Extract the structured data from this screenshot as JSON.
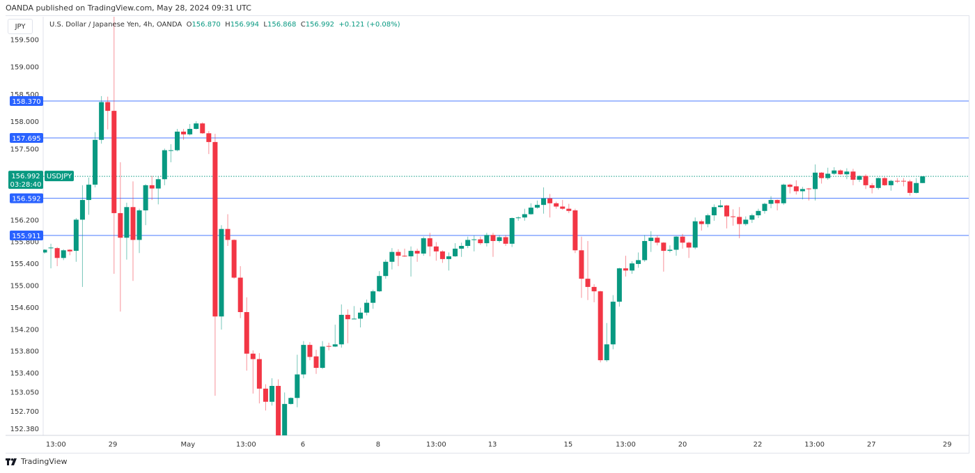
{
  "header": {
    "published": "OANDA published on TradingView.com, May 28, 2024 09:31 UTC",
    "currency_badge": "JPY",
    "symbol_desc": "U.S. Dollar / Japanese Yen, 4h, OANDA",
    "o_label": "O",
    "o": "156.870",
    "h_label": "H",
    "h": "156.994",
    "l_label": "L",
    "l": "156.868",
    "c_label": "C",
    "c": "156.992",
    "change": "+0.121 (+0.08%)"
  },
  "footer": {
    "brand": "TradingView"
  },
  "colors": {
    "up": "#089981",
    "down": "#F23645",
    "level": "#2962FF",
    "axis": "#e0e3eb"
  },
  "chart_data": {
    "type": "candlestick",
    "symbol": "USDJPY",
    "interval": "4h",
    "ylim": [
      152.3,
      160.0
    ],
    "price_ticks": [
      "159.500",
      "159.000",
      "158.500",
      "158.000",
      "157.500",
      "156.200",
      "155.800",
      "155.400",
      "155.000",
      "154.600",
      "154.200",
      "153.800",
      "153.400",
      "153.050",
      "152.700",
      "152.380"
    ],
    "time_ticks": [
      {
        "label": "13:00",
        "index": 1.8
      },
      {
        "label": "29",
        "index": 10.8
      },
      {
        "label": "May",
        "index": 22.7
      },
      {
        "label": "13:00",
        "index": 31.9
      },
      {
        "label": "6",
        "index": 40.9
      },
      {
        "label": "8",
        "index": 52.8
      },
      {
        "label": "13:00",
        "index": 62
      },
      {
        "label": "13",
        "index": 70.9
      },
      {
        "label": "15",
        "index": 82.9
      },
      {
        "label": "13:00",
        "index": 92
      },
      {
        "label": "20",
        "index": 101
      },
      {
        "label": "22",
        "index": 112.9
      },
      {
        "label": "13:00",
        "index": 121.9
      },
      {
        "label": "27",
        "index": 130.9
      },
      {
        "label": "29",
        "index": 142.9
      }
    ],
    "levels": [
      "158.370",
      "157.695",
      "156.592",
      "155.911"
    ],
    "last_price": {
      "value": "156.992",
      "countdown": "03:28:40",
      "tag": "USDJPY"
    },
    "candles_ohlc": [
      [
        155.6,
        155.66,
        155.58,
        155.65
      ],
      [
        155.68,
        155.76,
        155.31,
        155.69
      ],
      [
        155.68,
        155.7,
        155.35,
        155.5
      ],
      [
        155.5,
        155.66,
        155.46,
        155.64
      ],
      [
        155.65,
        155.66,
        155.55,
        155.62
      ],
      [
        155.63,
        156.23,
        155.43,
        156.2
      ],
      [
        156.2,
        156.83,
        154.97,
        156.56
      ],
      [
        156.56,
        156.97,
        156.29,
        156.84
      ],
      [
        156.84,
        157.8,
        156.79,
        157.66
      ],
      [
        157.66,
        158.46,
        157.59,
        158.35
      ],
      [
        158.35,
        158.45,
        157.85,
        158.19
      ],
      [
        158.19,
        160.2,
        155.21,
        156.32
      ],
      [
        156.32,
        157.25,
        154.52,
        155.87
      ],
      [
        155.87,
        156.51,
        155.47,
        156.43
      ],
      [
        156.43,
        156.9,
        155.08,
        155.83
      ],
      [
        155.83,
        156.4,
        155.59,
        156.37
      ],
      [
        156.37,
        156.85,
        156.1,
        156.83
      ],
      [
        156.83,
        157.0,
        156.56,
        156.77
      ],
      [
        156.77,
        156.99,
        156.48,
        156.94
      ],
      [
        156.94,
        157.5,
        156.83,
        157.47
      ],
      [
        157.46,
        157.58,
        157.25,
        157.47
      ],
      [
        157.47,
        157.86,
        157.45,
        157.81
      ],
      [
        157.81,
        157.86,
        157.66,
        157.76
      ],
      [
        157.76,
        157.95,
        157.74,
        157.86
      ],
      [
        157.86,
        158.0,
        157.85,
        157.96
      ],
      [
        157.96,
        157.98,
        157.77,
        157.78
      ],
      [
        157.78,
        157.82,
        157.4,
        157.62
      ],
      [
        157.62,
        157.77,
        152.98,
        154.43
      ],
      [
        154.43,
        156.1,
        154.19,
        156.03
      ],
      [
        156.03,
        156.3,
        155.72,
        155.83
      ],
      [
        155.83,
        155.84,
        155.12,
        155.14
      ],
      [
        155.14,
        155.35,
        154.4,
        154.51
      ],
      [
        154.51,
        154.78,
        153.44,
        153.75
      ],
      [
        153.75,
        153.81,
        153.02,
        153.65
      ],
      [
        153.65,
        153.76,
        152.84,
        153.11
      ],
      [
        153.11,
        153.19,
        152.71,
        152.87
      ],
      [
        152.87,
        153.3,
        152.8,
        153.16
      ],
      [
        153.16,
        153.28,
        151.9,
        152.2
      ],
      [
        152.2,
        153.04,
        151.95,
        152.83
      ],
      [
        152.83,
        152.95,
        152.82,
        152.94
      ],
      [
        152.94,
        153.73,
        152.77,
        153.37
      ],
      [
        153.37,
        153.98,
        153.3,
        153.91
      ],
      [
        153.91,
        153.96,
        153.63,
        153.69
      ],
      [
        153.7,
        153.82,
        153.38,
        153.49
      ],
      [
        153.49,
        153.98,
        153.47,
        153.88
      ],
      [
        153.89,
        153.95,
        153.81,
        153.88
      ],
      [
        153.88,
        154.28,
        153.87,
        153.92
      ],
      [
        153.92,
        154.65,
        153.86,
        154.46
      ],
      [
        154.46,
        154.56,
        153.94,
        154.38
      ],
      [
        154.38,
        154.62,
        154.38,
        154.39
      ],
      [
        154.39,
        154.59,
        154.23,
        154.5
      ],
      [
        154.5,
        154.74,
        154.45,
        154.68
      ],
      [
        154.68,
        154.92,
        154.57,
        154.89
      ],
      [
        154.89,
        155.26,
        154.88,
        155.17
      ],
      [
        155.17,
        155.47,
        155.12,
        155.43
      ],
      [
        155.43,
        155.68,
        155.29,
        155.61
      ],
      [
        155.61,
        155.66,
        155.35,
        155.54
      ],
      [
        155.54,
        155.67,
        155.52,
        155.53
      ],
      [
        155.53,
        155.71,
        155.16,
        155.63
      ],
      [
        155.63,
        155.67,
        155.43,
        155.58
      ],
      [
        155.58,
        155.89,
        155.54,
        155.86
      ],
      [
        155.86,
        155.96,
        155.53,
        155.71
      ],
      [
        155.71,
        155.79,
        155.45,
        155.62
      ],
      [
        155.62,
        155.64,
        155.41,
        155.48
      ],
      [
        155.48,
        155.6,
        155.27,
        155.53
      ],
      [
        155.53,
        155.77,
        155.52,
        155.67
      ],
      [
        155.67,
        155.78,
        155.52,
        155.72
      ],
      [
        155.72,
        155.89,
        155.68,
        155.83
      ],
      [
        155.83,
        155.91,
        155.62,
        155.84
      ],
      [
        155.84,
        155.89,
        155.74,
        155.77
      ],
      [
        155.77,
        155.96,
        155.71,
        155.92
      ],
      [
        155.92,
        155.96,
        155.52,
        155.81
      ],
      [
        155.81,
        155.92,
        155.78,
        155.88
      ],
      [
        155.88,
        155.92,
        155.72,
        155.76
      ],
      [
        155.76,
        156.24,
        155.7,
        156.23
      ],
      [
        156.23,
        156.26,
        156.18,
        156.24
      ],
      [
        156.24,
        156.4,
        156.18,
        156.3
      ],
      [
        156.3,
        156.5,
        156.29,
        156.42
      ],
      [
        156.42,
        156.55,
        156.4,
        156.47
      ],
      [
        156.47,
        156.79,
        156.31,
        156.59
      ],
      [
        156.59,
        156.67,
        156.24,
        156.5
      ],
      [
        156.5,
        156.53,
        156.4,
        156.44
      ],
      [
        156.44,
        156.56,
        156.38,
        156.4
      ],
      [
        156.4,
        156.49,
        156.32,
        156.36
      ],
      [
        156.37,
        156.4,
        155.59,
        155.64
      ],
      [
        155.64,
        155.89,
        154.77,
        155.12
      ],
      [
        155.12,
        155.81,
        154.73,
        154.97
      ],
      [
        154.97,
        155.02,
        154.69,
        154.89
      ],
      [
        154.89,
        154.9,
        153.59,
        153.63
      ],
      [
        153.63,
        154.31,
        153.6,
        153.92
      ],
      [
        153.92,
        154.82,
        153.83,
        154.7
      ],
      [
        154.7,
        155.32,
        154.61,
        155.31
      ],
      [
        155.31,
        155.54,
        155.16,
        155.27
      ],
      [
        155.27,
        155.44,
        155.21,
        155.4
      ],
      [
        155.39,
        155.6,
        155.32,
        155.46
      ],
      [
        155.46,
        155.92,
        155.43,
        155.81
      ],
      [
        155.81,
        155.99,
        155.61,
        155.87
      ],
      [
        155.87,
        155.91,
        155.73,
        155.78
      ],
      [
        155.78,
        155.79,
        155.25,
        155.63
      ],
      [
        155.63,
        155.73,
        155.6,
        155.65
      ],
      [
        155.65,
        155.9,
        155.54,
        155.89
      ],
      [
        155.89,
        155.94,
        155.67,
        155.78
      ],
      [
        155.78,
        155.8,
        155.5,
        155.69
      ],
      [
        155.69,
        156.24,
        155.66,
        156.17
      ],
      [
        156.17,
        156.2,
        156.0,
        156.12
      ],
      [
        156.12,
        156.31,
        156.06,
        156.28
      ],
      [
        156.28,
        156.48,
        156.18,
        156.43
      ],
      [
        156.43,
        156.56,
        156.42,
        156.46
      ],
      [
        156.46,
        156.47,
        156.04,
        156.26
      ],
      [
        156.26,
        156.39,
        156.09,
        156.25
      ],
      [
        156.25,
        156.43,
        155.86,
        156.12
      ],
      [
        156.12,
        156.26,
        156.09,
        156.2
      ],
      [
        156.2,
        156.31,
        156.14,
        156.28
      ],
      [
        156.28,
        156.4,
        156.23,
        156.36
      ],
      [
        156.36,
        156.51,
        156.31,
        156.49
      ],
      [
        156.49,
        156.63,
        156.41,
        156.56
      ],
      [
        156.56,
        156.57,
        156.37,
        156.5
      ],
      [
        156.5,
        156.86,
        156.47,
        156.84
      ],
      [
        156.84,
        156.86,
        156.68,
        156.8
      ],
      [
        156.81,
        156.92,
        156.66,
        156.72
      ],
      [
        156.72,
        156.8,
        156.57,
        156.76
      ],
      [
        156.77,
        156.78,
        156.55,
        156.76
      ],
      [
        156.76,
        157.21,
        156.55,
        157.06
      ],
      [
        157.06,
        157.07,
        156.86,
        156.96
      ],
      [
        156.96,
        157.15,
        156.93,
        157.04
      ],
      [
        157.04,
        157.16,
        157.02,
        157.1
      ],
      [
        157.1,
        157.12,
        157.02,
        157.03
      ],
      [
        157.03,
        157.14,
        156.94,
        157.08
      ],
      [
        157.08,
        157.13,
        156.83,
        156.93
      ],
      [
        156.93,
        157.01,
        156.89,
        157.0
      ],
      [
        157.0,
        157.03,
        156.76,
        156.83
      ],
      [
        156.83,
        156.87,
        156.68,
        156.78
      ],
      [
        156.78,
        156.97,
        156.75,
        156.96
      ],
      [
        156.96,
        156.98,
        156.82,
        156.83
      ],
      [
        156.83,
        156.93,
        156.73,
        156.91
      ],
      [
        156.91,
        156.96,
        156.87,
        156.9
      ],
      [
        156.91,
        156.96,
        156.81,
        156.9
      ],
      [
        156.9,
        156.93,
        156.64,
        156.69
      ],
      [
        156.69,
        156.96,
        156.68,
        156.87
      ],
      [
        156.87,
        156.994,
        156.868,
        156.992
      ]
    ]
  }
}
